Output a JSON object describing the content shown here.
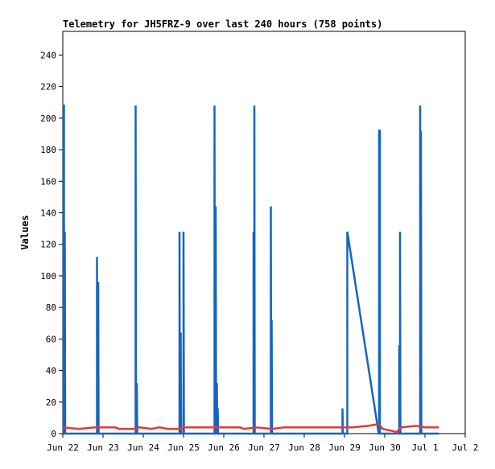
{
  "chart_data": {
    "type": "line",
    "title": "Telemetry for JH5FRZ-9 over last 240 hours (758 points)",
    "xlabel": "",
    "ylabel": "Values",
    "ylim": [
      0,
      255
    ],
    "yticks": [
      0,
      20,
      40,
      60,
      80,
      100,
      120,
      140,
      160,
      180,
      200,
      220,
      240
    ],
    "xlim": [
      0,
      10
    ],
    "xticks": [
      {
        "x": 0,
        "label": "Jun 22"
      },
      {
        "x": 1,
        "label": "Jun 23"
      },
      {
        "x": 2,
        "label": "Jun 24"
      },
      {
        "x": 3,
        "label": "Jun 25"
      },
      {
        "x": 4,
        "label": "Jun 26"
      },
      {
        "x": 5,
        "label": "Jun 27"
      },
      {
        "x": 6,
        "label": "Jun 28"
      },
      {
        "x": 7,
        "label": "Jun 29"
      },
      {
        "x": 8,
        "label": "Jun 30"
      },
      {
        "x": 9,
        "label": "Jul 1"
      },
      {
        "x": 10,
        "label": "Jul 2"
      }
    ],
    "grid": false,
    "legend": "none",
    "series": [
      {
        "color": "#1565c0",
        "points": [
          [
            0.0,
            0
          ],
          [
            0.02,
            0
          ],
          [
            0.02,
            208
          ],
          [
            0.03,
            208
          ],
          [
            0.03,
            0
          ],
          [
            0.05,
            0
          ],
          [
            0.05,
            128
          ],
          [
            0.06,
            0
          ],
          [
            0.85,
            0
          ],
          [
            0.85,
            112
          ],
          [
            0.86,
            0
          ],
          [
            0.88,
            0
          ],
          [
            0.88,
            96
          ],
          [
            0.89,
            0
          ],
          [
            1.81,
            0
          ],
          [
            1.81,
            208
          ],
          [
            1.82,
            0
          ],
          [
            1.84,
            0
          ],
          [
            1.84,
            32
          ],
          [
            1.85,
            0
          ],
          [
            2.9,
            0
          ],
          [
            2.9,
            128
          ],
          [
            2.91,
            0
          ],
          [
            2.93,
            0
          ],
          [
            2.93,
            64
          ],
          [
            2.94,
            0
          ],
          [
            3.0,
            0
          ],
          [
            3.0,
            128
          ],
          [
            3.01,
            0
          ],
          [
            3.77,
            0
          ],
          [
            3.77,
            208
          ],
          [
            3.78,
            0
          ],
          [
            3.8,
            0
          ],
          [
            3.8,
            144
          ],
          [
            3.81,
            0
          ],
          [
            3.83,
            0
          ],
          [
            3.83,
            32
          ],
          [
            3.84,
            0
          ],
          [
            3.85,
            0
          ],
          [
            3.85,
            16
          ],
          [
            3.86,
            0
          ],
          [
            4.76,
            0
          ],
          [
            4.76,
            208
          ],
          [
            4.77,
            0
          ],
          [
            4.74,
            0
          ],
          [
            4.74,
            128
          ],
          [
            4.75,
            0
          ],
          [
            5.17,
            0
          ],
          [
            5.17,
            144
          ],
          [
            5.18,
            0
          ],
          [
            5.19,
            0
          ],
          [
            5.19,
            72
          ],
          [
            5.2,
            0
          ],
          [
            6.95,
            0
          ],
          [
            6.95,
            16
          ],
          [
            6.96,
            0
          ],
          [
            7.07,
            0
          ],
          [
            7.07,
            128
          ],
          [
            7.85,
            0
          ],
          [
            7.86,
            0
          ],
          [
            7.86,
            192
          ],
          [
            7.88,
            192
          ],
          [
            7.88,
            0
          ],
          [
            8.36,
            0
          ],
          [
            8.36,
            56
          ],
          [
            8.37,
            0
          ],
          [
            8.38,
            0
          ],
          [
            8.38,
            128
          ],
          [
            8.39,
            0
          ],
          [
            8.88,
            0
          ],
          [
            8.88,
            208
          ],
          [
            8.89,
            0
          ],
          [
            8.9,
            0
          ],
          [
            8.9,
            192
          ],
          [
            8.91,
            0
          ],
          [
            9.35,
            0
          ]
        ]
      },
      {
        "color": "#e53935",
        "points": [
          [
            0.0,
            4
          ],
          [
            0.4,
            3
          ],
          [
            0.8,
            4
          ],
          [
            1.3,
            4
          ],
          [
            1.4,
            3
          ],
          [
            1.8,
            3
          ],
          [
            1.9,
            4
          ],
          [
            2.2,
            3
          ],
          [
            2.4,
            4
          ],
          [
            2.6,
            3
          ],
          [
            2.9,
            3
          ],
          [
            3.0,
            4
          ],
          [
            3.5,
            4
          ],
          [
            4.0,
            4
          ],
          [
            4.4,
            4
          ],
          [
            4.5,
            3
          ],
          [
            4.8,
            4
          ],
          [
            5.2,
            3
          ],
          [
            5.5,
            4
          ],
          [
            6.0,
            4
          ],
          [
            6.5,
            4
          ],
          [
            7.0,
            4
          ],
          [
            7.2,
            4
          ],
          [
            7.6,
            5
          ],
          [
            7.85,
            6
          ],
          [
            7.95,
            3
          ],
          [
            8.3,
            1
          ],
          [
            8.4,
            4
          ],
          [
            8.8,
            5
          ],
          [
            9.0,
            4
          ],
          [
            9.35,
            4
          ]
        ]
      }
    ]
  }
}
